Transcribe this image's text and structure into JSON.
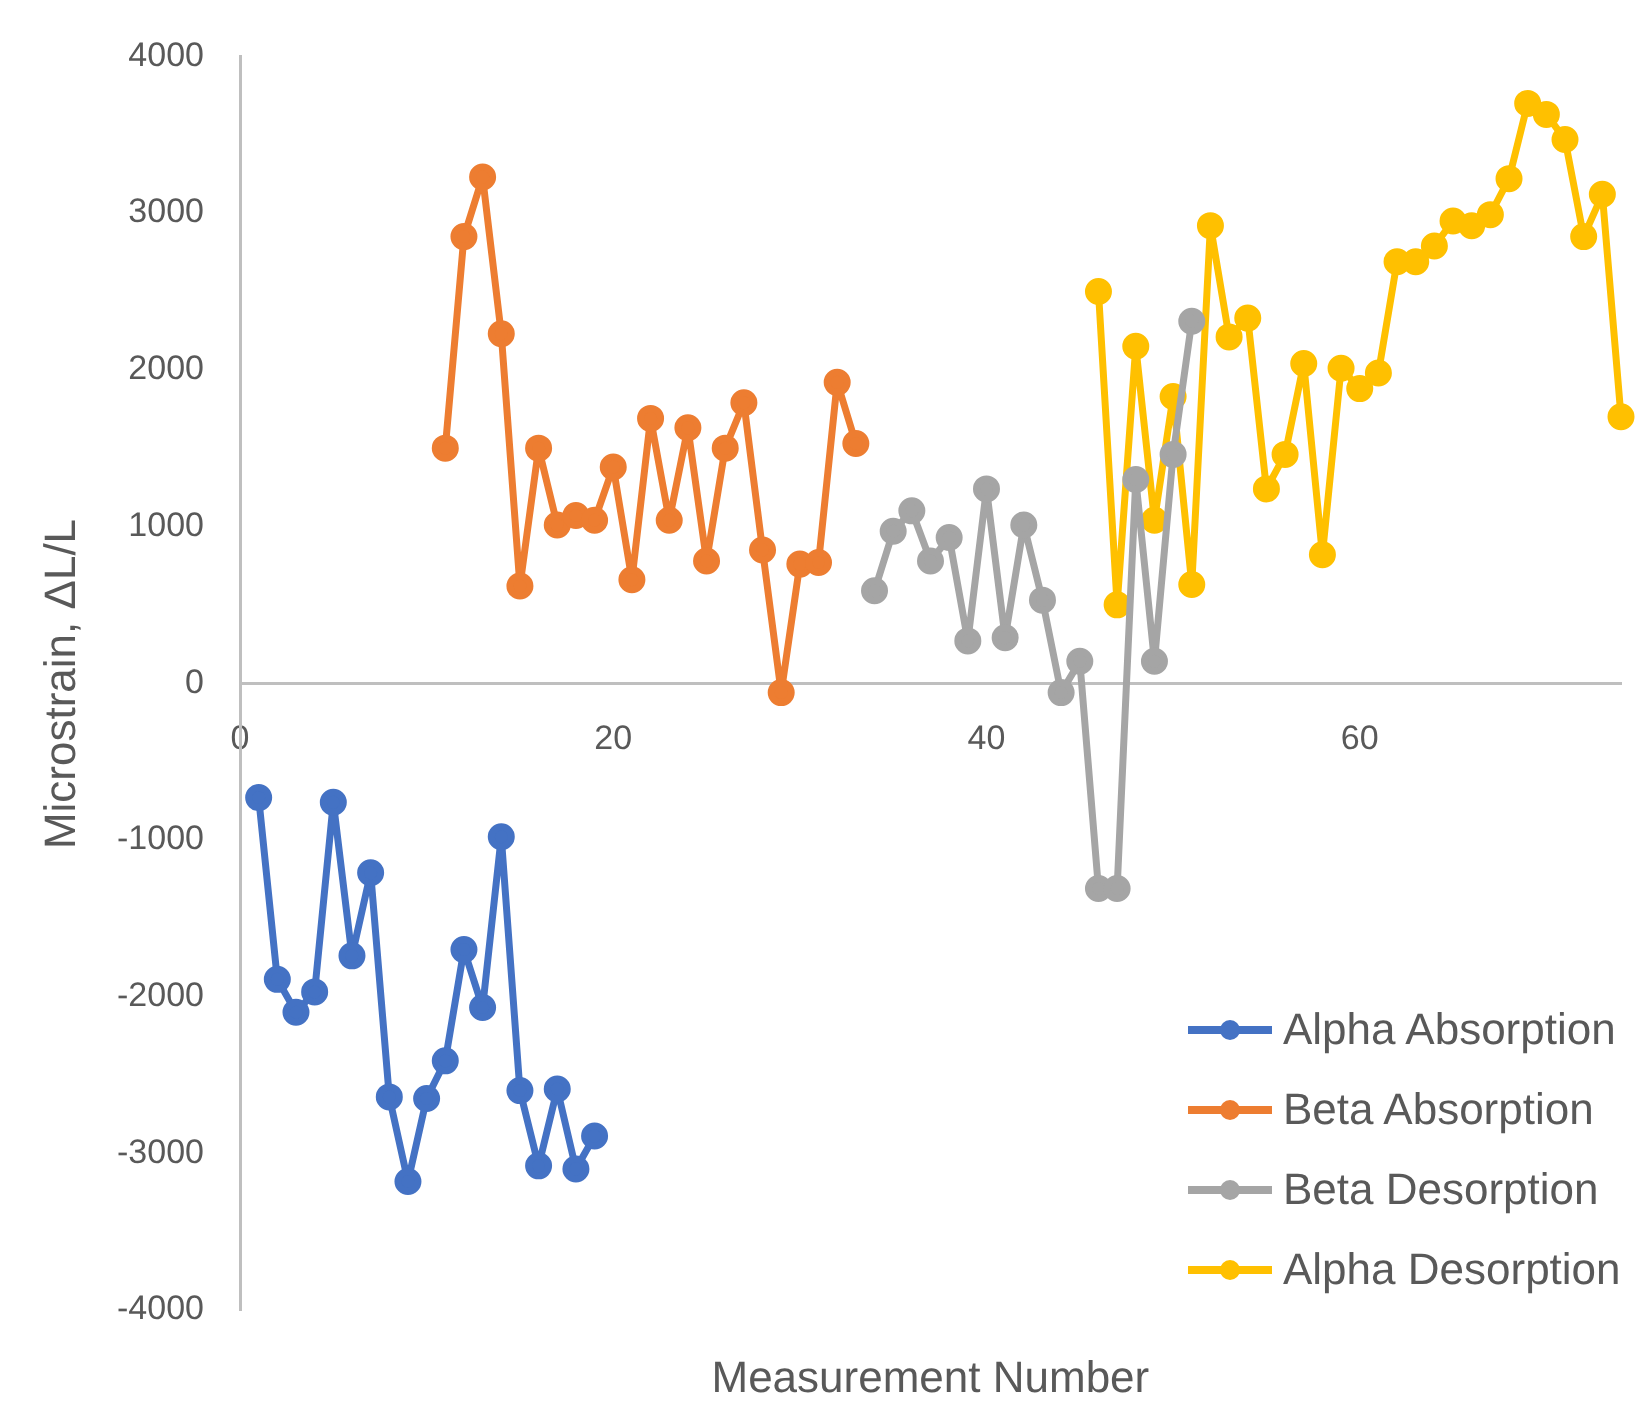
{
  "chart_data": {
    "type": "line",
    "xlabel": "Measurement Number",
    "ylabel": "Microstrain, ΔL/L",
    "xlim": [
      0,
      74
    ],
    "xticks": [
      0,
      20,
      40,
      60
    ],
    "ylim": [
      -4000,
      4000
    ],
    "yticks": [
      -4000,
      -3000,
      -2000,
      -1000,
      0,
      1000,
      2000,
      3000,
      4000
    ],
    "grid": false,
    "legend": "bottom right",
    "marker": "circle",
    "line_style": "solid",
    "series": [
      {
        "name": "Alpha Absorption",
        "color": "#4472c4",
        "x": [
          1,
          2,
          3,
          4,
          5,
          6,
          7,
          8,
          9,
          10,
          11,
          12,
          13,
          14,
          15,
          16,
          17,
          18,
          19
        ],
        "values": [
          -730,
          -1890,
          -2100,
          -1970,
          -760,
          -1740,
          -1210,
          -2640,
          -3180,
          -2650,
          -2410,
          -1700,
          -2070,
          -980,
          -2600,
          -3080,
          -2590,
          -3100,
          -2890
        ]
      },
      {
        "name": "Beta Absorption",
        "color": "#ed7d31",
        "x": [
          11,
          12,
          13,
          14,
          15,
          16,
          17,
          18,
          19,
          20,
          21,
          22,
          23,
          24,
          25,
          26,
          27,
          28,
          29,
          30,
          31,
          32,
          33
        ],
        "values": [
          1500,
          2850,
          3230,
          2230,
          620,
          1500,
          1010,
          1070,
          1040,
          1380,
          660,
          1690,
          1040,
          1630,
          780,
          1500,
          1790,
          850,
          -60,
          760,
          770,
          1920,
          1530
        ]
      },
      {
        "name": "Beta Desorption",
        "color": "#a5a5a5",
        "x": [
          34,
          35,
          36,
          37,
          38,
          39,
          40,
          41,
          42,
          43,
          44,
          45,
          46,
          47,
          48,
          49,
          50,
          51
        ],
        "values": [
          590,
          970,
          1100,
          780,
          930,
          270,
          1240,
          290,
          1010,
          530,
          -60,
          140,
          -1310,
          -1310,
          1300,
          140,
          1460,
          2310
        ]
      },
      {
        "name": "Alpha Desorption",
        "color": "#ffc000",
        "x": [
          46,
          47,
          48,
          49,
          50,
          51,
          52,
          53,
          54,
          55,
          56,
          57,
          58,
          59,
          60,
          61,
          62,
          63,
          64,
          65,
          66,
          67,
          68,
          69,
          70,
          71,
          72,
          73,
          74
        ],
        "values": [
          2500,
          500,
          2150,
          1040,
          1830,
          630,
          2920,
          2210,
          2330,
          1240,
          1460,
          2040,
          820,
          2010,
          1880,
          1980,
          2690,
          2690,
          2790,
          2950,
          2920,
          2990,
          3220,
          3700,
          3630,
          3470,
          2850,
          3120,
          1700
        ]
      }
    ]
  }
}
